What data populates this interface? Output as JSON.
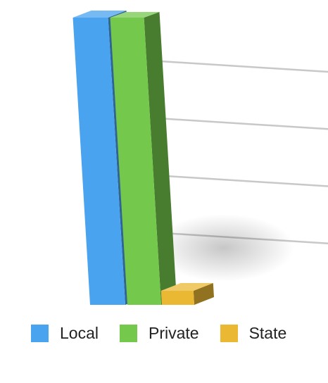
{
  "chart_data": {
    "type": "bar",
    "categories": [
      ""
    ],
    "series": [
      {
        "name": "Local",
        "values": [
          102
        ],
        "color": "#4aa3ef"
      },
      {
        "name": "Private",
        "values": [
          102
        ],
        "color": "#74c94c"
      },
      {
        "name": "State",
        "values": [
          5
        ],
        "color": "#eab833"
      }
    ],
    "ylim": [
      0,
      100
    ],
    "gridlines": [
      25,
      50,
      75,
      100
    ],
    "grid": true,
    "legend_position": "bottom",
    "style": "3d"
  }
}
